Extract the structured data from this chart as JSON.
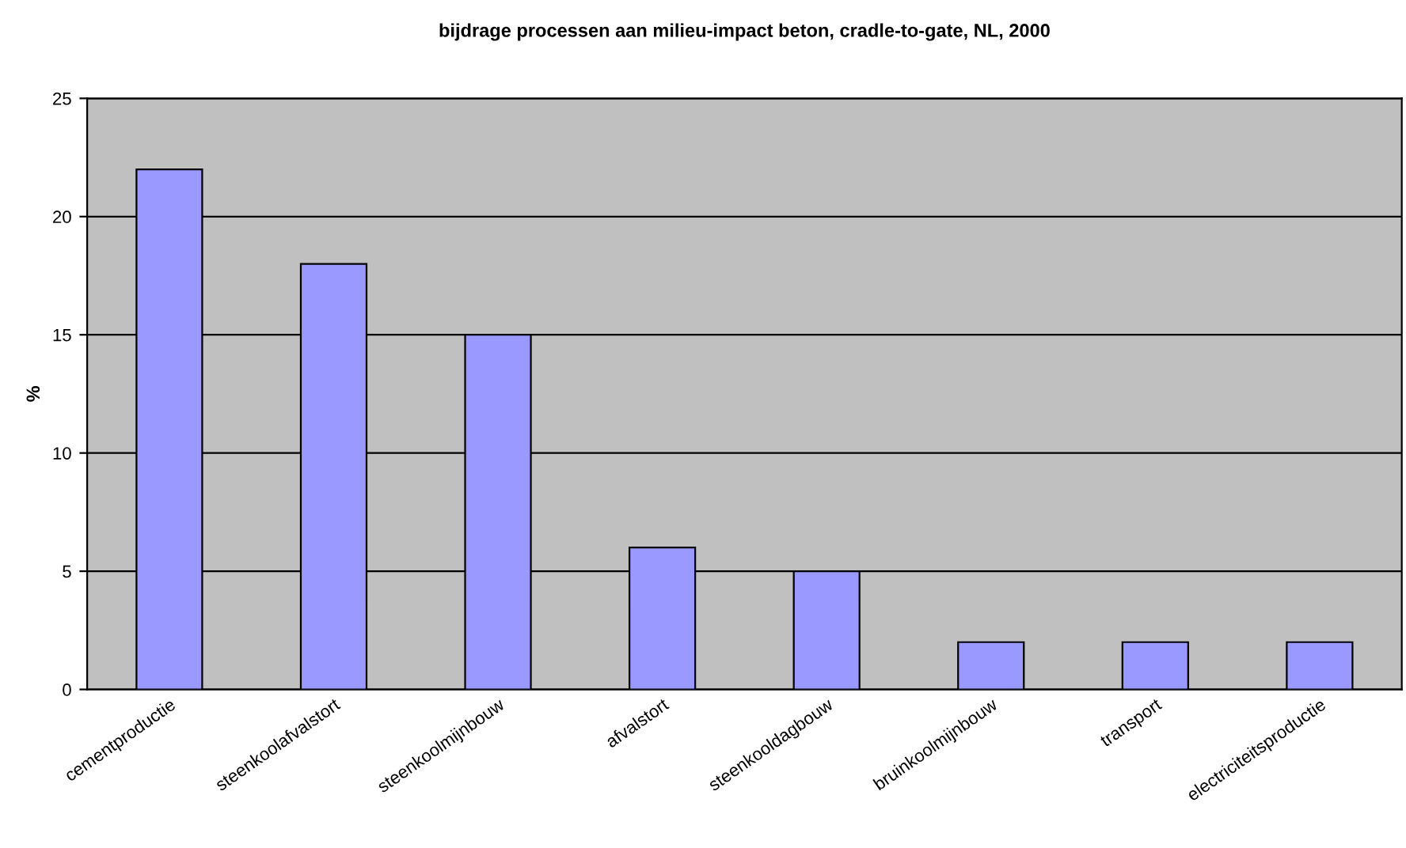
{
  "chart_data": {
    "type": "bar",
    "title": "bijdrage processen aan milieu-impact beton, cradle-to-gate, NL, 2000",
    "ylabel": "%",
    "categories": [
      "cementproductie",
      "steenkoolafvalstort",
      "steenkoolmijnbouw",
      "afvalstort",
      "steenkooldagbouw",
      "bruinkoolmijnbouw",
      "transport",
      "electriciteitsproductie"
    ],
    "values": [
      22,
      18,
      15,
      6,
      5,
      2,
      2,
      2
    ],
    "color": "#9999ff",
    "ylim": [
      0,
      25
    ],
    "yticks": [
      0,
      5,
      10,
      15,
      20,
      25
    ],
    "grid": "y"
  }
}
